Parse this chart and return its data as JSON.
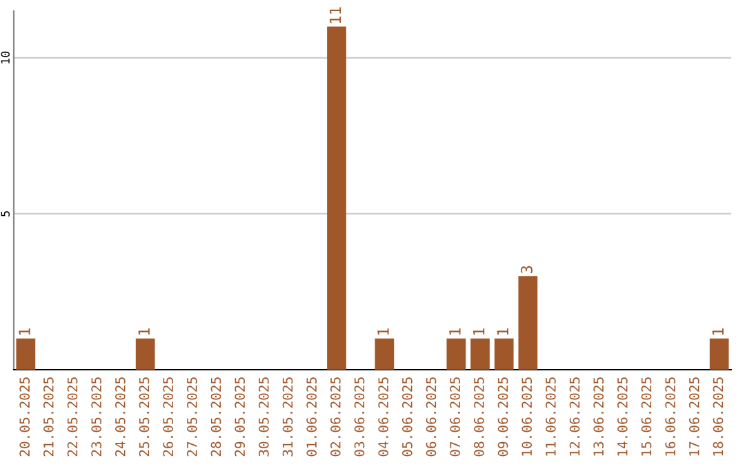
{
  "chart_data": {
    "type": "bar",
    "categories": [
      "20.05.2025",
      "21.05.2025",
      "22.05.2025",
      "23.05.2025",
      "24.05.2025",
      "25.05.2025",
      "26.05.2025",
      "27.05.2025",
      "28.05.2025",
      "29.05.2025",
      "30.05.2025",
      "31.05.2025",
      "01.06.2025",
      "02.06.2025",
      "03.06.2025",
      "04.06.2025",
      "05.06.2025",
      "06.06.2025",
      "07.06.2025",
      "08.06.2025",
      "09.06.2025",
      "10.06.2025",
      "11.06.2025",
      "12.06.2025",
      "13.06.2025",
      "14.06.2025",
      "15.06.2025",
      "16.06.2025",
      "17.06.2025",
      "18.06.2025"
    ],
    "values": [
      1,
      0,
      0,
      0,
      0,
      1,
      0,
      0,
      0,
      0,
      0,
      0,
      0,
      11,
      0,
      1,
      0,
      0,
      1,
      1,
      1,
      3,
      0,
      0,
      0,
      0,
      0,
      0,
      0,
      1
    ],
    "color": "#a0572a",
    "ylim": [
      0,
      11.5
    ],
    "yticks": [
      5,
      10
    ],
    "grid": "y",
    "value_labels": [
      "1",
      null,
      null,
      null,
      null,
      "1",
      null,
      null,
      null,
      null,
      null,
      null,
      null,
      "11",
      null,
      "1",
      null,
      null,
      "1",
      "1",
      "1",
      "3",
      null,
      null,
      null,
      null,
      null,
      null,
      null,
      "1"
    ]
  }
}
